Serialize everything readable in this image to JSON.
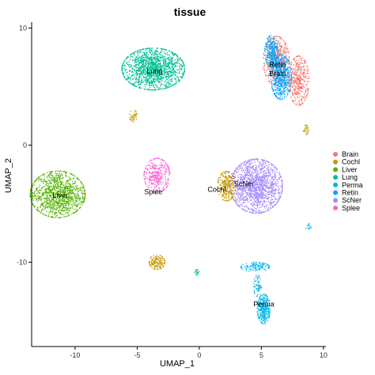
{
  "chart_data": {
    "type": "scatter",
    "title": "tissue",
    "xlabel": "UMAP_1",
    "ylabel": "UMAP_2",
    "xlim": [
      -13.5,
      10.2
    ],
    "ylim": [
      -17.2,
      10.5
    ],
    "x_ticks": [
      -10,
      -5,
      0,
      5,
      10
    ],
    "y_ticks": [
      10,
      0,
      -10
    ],
    "grid": false,
    "legend_position": "right",
    "series": [
      {
        "name": "Brain",
        "color": "#F8766D"
      },
      {
        "name": "Cochl",
        "color": "#C49A00"
      },
      {
        "name": "Liver",
        "color": "#53B400"
      },
      {
        "name": "Lung",
        "color": "#00C094"
      },
      {
        "name": "Perma",
        "color": "#00B6EB"
      },
      {
        "name": "Retin",
        "color": "#06A4FF"
      },
      {
        "name": "ScNer",
        "color": "#A58AFF"
      },
      {
        "name": "Splee",
        "color": "#FB61D7"
      }
    ],
    "clusters": [
      {
        "series": "Lung",
        "center": [
          -3.7,
          6.5
        ],
        "spread": [
          2.4,
          1.7
        ],
        "points": 1400
      },
      {
        "series": "Liver",
        "center": [
          -11.4,
          -4.2
        ],
        "spread": [
          2.1,
          1.9
        ],
        "points": 1100
      },
      {
        "series": "ScNer",
        "center": [
          4.6,
          -3.5
        ],
        "spread": [
          2.0,
          2.2
        ],
        "points": 1400
      },
      {
        "series": "Brain",
        "center": [
          6.2,
          7.2
        ],
        "spread": [
          1.0,
          2.0
        ],
        "points": 500
      },
      {
        "series": "Brain",
        "center": [
          8.0,
          5.5
        ],
        "spread": [
          0.8,
          2.0
        ],
        "points": 400
      },
      {
        "series": "Retin",
        "center": [
          6.6,
          5.8
        ],
        "spread": [
          0.8,
          1.8
        ],
        "points": 550
      },
      {
        "series": "Retin",
        "center": [
          5.8,
          8.0
        ],
        "spread": [
          0.5,
          1.3
        ],
        "points": 250
      },
      {
        "series": "Splee",
        "center": [
          -3.4,
          -2.6
        ],
        "spread": [
          1.0,
          1.4
        ],
        "points": 320
      },
      {
        "series": "Cochl",
        "center": [
          2.2,
          -3.5
        ],
        "spread": [
          0.7,
          1.2
        ],
        "points": 260
      },
      {
        "series": "Cochl",
        "center": [
          -3.4,
          -10.0
        ],
        "spread": [
          0.6,
          0.6
        ],
        "points": 140
      },
      {
        "series": "Cochl",
        "center": [
          -5.3,
          2.5
        ],
        "spread": [
          0.3,
          0.5
        ],
        "points": 40
      },
      {
        "series": "Cochl",
        "center": [
          8.6,
          1.3
        ],
        "spread": [
          0.2,
          0.4
        ],
        "points": 25
      },
      {
        "series": "Perma",
        "center": [
          5.2,
          -14.0
        ],
        "spread": [
          0.5,
          1.2
        ],
        "points": 320
      },
      {
        "series": "Perma",
        "center": [
          4.5,
          -10.4
        ],
        "spread": [
          1.1,
          0.4
        ],
        "points": 120
      },
      {
        "series": "Perma",
        "center": [
          4.7,
          -12.0
        ],
        "spread": [
          0.3,
          0.9
        ],
        "points": 60
      },
      {
        "series": "Lung",
        "center": [
          -0.2,
          -10.8
        ],
        "spread": [
          0.2,
          0.3
        ],
        "points": 18
      },
      {
        "series": "Perma",
        "center": [
          8.8,
          -7.0
        ],
        "spread": [
          0.2,
          0.3
        ],
        "points": 15
      }
    ],
    "annotations": [
      {
        "text": "Lung",
        "x": -3.6,
        "y": 6.3
      },
      {
        "text": "Retin",
        "x": 6.3,
        "y": 6.9
      },
      {
        "text": "Brain",
        "x": 6.3,
        "y": 6.1
      },
      {
        "text": "Liver",
        "x": -11.2,
        "y": -4.3
      },
      {
        "text": "Splee",
        "x": -3.7,
        "y": -4.0
      },
      {
        "text": "Cochl",
        "x": 1.4,
        "y": -3.8
      },
      {
        "text": "ScNer",
        "x": 3.6,
        "y": -3.3
      },
      {
        "text": "Perma",
        "x": 5.2,
        "y": -13.6
      }
    ]
  }
}
